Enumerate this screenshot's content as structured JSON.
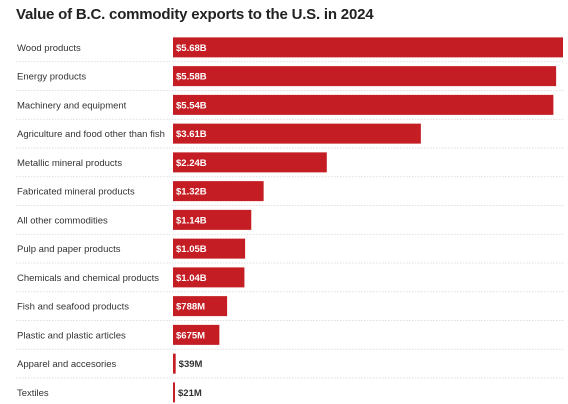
{
  "chart_data": {
    "type": "bar",
    "orientation": "horizontal",
    "title": "Value of B.C. commodity exports to the U.S. in 2024",
    "categories": [
      "Wood products",
      "Energy products",
      "Machinery and equipment",
      "Agriculture and food other than fish",
      "Metallic mineral products",
      "Fabricated mineral products",
      "All other commodities",
      "Pulp and paper products",
      "Chemicals and chemical products",
      "Fish and seafood products",
      "Plastic and plastic articles",
      "Apparel and accesories",
      "Textiles"
    ],
    "values": [
      5680,
      5580,
      5540,
      3610,
      2240,
      1320,
      1140,
      1050,
      1040,
      788,
      675,
      39,
      21
    ],
    "value_labels": [
      "$5.68B",
      "$5.58B",
      "$5.54B",
      "$3.61B",
      "$2.24B",
      "$1.32B",
      "$1.14B",
      "$1.05B",
      "$1.04B",
      "$788M",
      "$675M",
      "$39M",
      "$21M"
    ],
    "unit": "millions of dollars",
    "xlim": [
      0,
      5680
    ],
    "grid": false,
    "legend": "none",
    "bar_color": "#c41e24",
    "label_inside_color": "#ffffff",
    "label_outside_color": "#333333"
  }
}
